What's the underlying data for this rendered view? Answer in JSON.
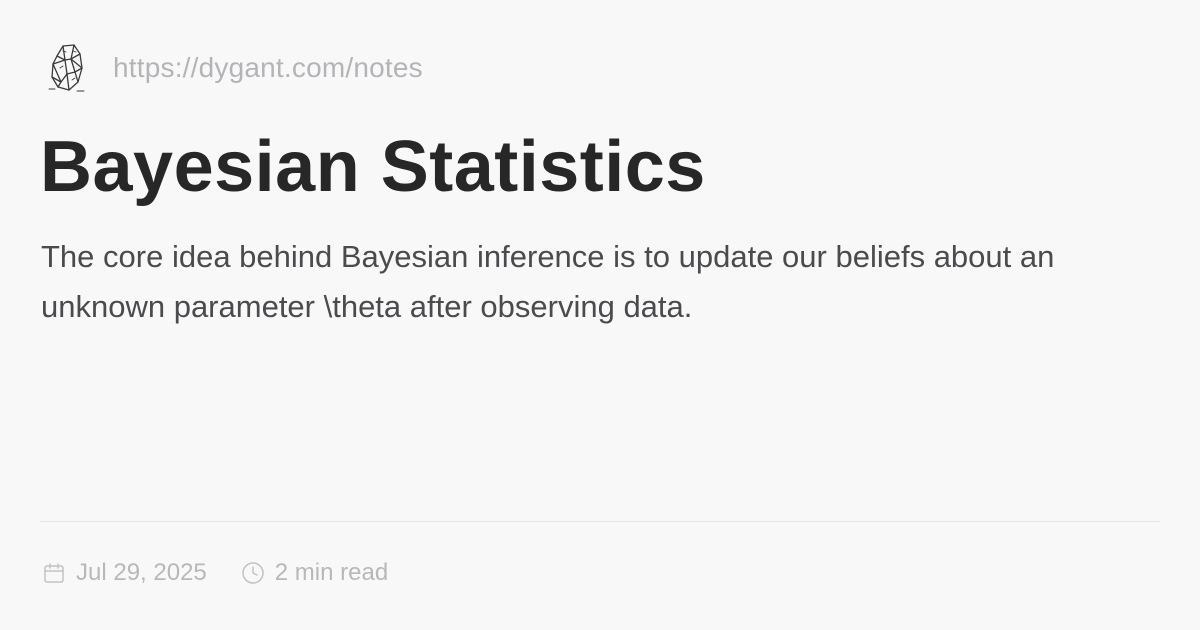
{
  "site": {
    "logo_icon": "crystal-logo-icon",
    "url": "https://dygant.com/notes"
  },
  "post": {
    "title": "Bayesian Statistics",
    "description": "The core idea behind Bayesian inference is to update our beliefs about an unknown parameter \\theta after observing data."
  },
  "meta": {
    "date_icon": "calendar-icon",
    "date": "Jul 29, 2025",
    "read_time_icon": "clock-icon",
    "read_time": "2 min read"
  },
  "colors": {
    "background": "#f9f8f9",
    "title": "#272727",
    "body_text": "#4b4b4d",
    "muted": "#b4b4b7"
  }
}
